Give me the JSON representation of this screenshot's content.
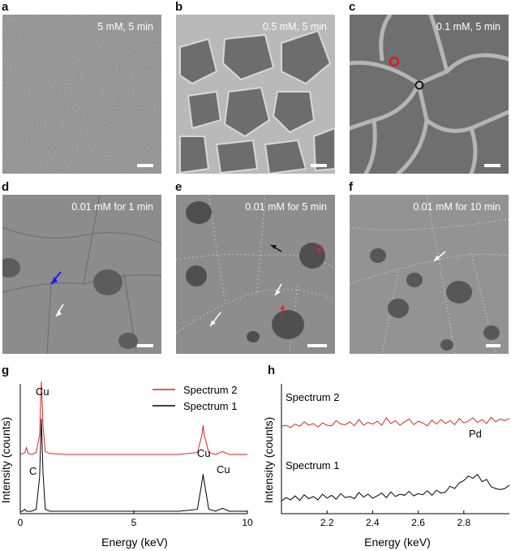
{
  "panel_letters": {
    "a": "a",
    "b": "b",
    "c": "c",
    "d": "d",
    "e": "e",
    "f": "f",
    "g": "g",
    "h": "h"
  },
  "sem_panels": [
    {
      "letter": "a",
      "caption": "5 mM, 5 min",
      "style": "dense-film"
    },
    {
      "letter": "b",
      "caption": "0.5 mM, 5 min",
      "style": "islands"
    },
    {
      "letter": "c",
      "caption": "0.1 mM, 5 min",
      "style": "network"
    },
    {
      "letter": "d",
      "caption": "0.01 mM for 1 min",
      "style": "sparse"
    },
    {
      "letter": "e",
      "caption": "0.01 mM for 5 min",
      "style": "sparse-dots"
    },
    {
      "letter": "f",
      "caption": "0.01 mM for 10 min",
      "style": "sparse-dots"
    }
  ],
  "colors": {
    "spectrum1": "#000000",
    "spectrum2": "#d62728",
    "blue_arrow": "#1a1aff",
    "red_arrow": "#e02020",
    "marker_red": "#ff0000",
    "marker_black": "#111111"
  },
  "chart_data": [
    {
      "type": "line",
      "panel": "g",
      "xlabel": "Energy (keV)",
      "ylabel": "Intensity (counts)",
      "xlim": [
        0,
        10
      ],
      "xticks": [
        0,
        5,
        10
      ],
      "legend_position": "top-right",
      "series": [
        {
          "name": "Spectrum 2",
          "color": "#d62728",
          "x": [
            0,
            0.1,
            0.2,
            0.27,
            0.35,
            0.5,
            0.7,
            0.85,
            0.93,
            1.0,
            1.1,
            1.3,
            2,
            3,
            4,
            5,
            6,
            7,
            7.8,
            8.0,
            8.05,
            8.1,
            8.3,
            8.6,
            8.9,
            9.2,
            10
          ],
          "y": [
            0.25,
            0.26,
            0.27,
            0.32,
            0.26,
            0.25,
            0.27,
            0.45,
            1.0,
            0.55,
            0.28,
            0.26,
            0.25,
            0.25,
            0.25,
            0.25,
            0.25,
            0.25,
            0.27,
            0.45,
            0.55,
            0.45,
            0.27,
            0.25,
            0.28,
            0.25,
            0.25
          ]
        },
        {
          "name": "Spectrum 1",
          "color": "#000000",
          "x": [
            0,
            0.1,
            0.2,
            0.27,
            0.35,
            0.5,
            0.7,
            0.85,
            0.93,
            1.0,
            1.1,
            1.3,
            2,
            3,
            4,
            5,
            6,
            7,
            7.8,
            8.0,
            8.05,
            8.1,
            8.3,
            8.6,
            8.9,
            9.2,
            10
          ],
          "y": [
            0.0,
            0.0,
            0.02,
            0.0,
            0.0,
            0.0,
            0.02,
            0.35,
            0.95,
            0.4,
            0.02,
            0.0,
            0.0,
            0.0,
            0.0,
            0.0,
            0.0,
            0.0,
            0.02,
            0.3,
            0.38,
            0.3,
            0.02,
            0.0,
            0.03,
            0.0,
            0.0
          ]
        }
      ],
      "annotations": [
        "C",
        "Cu",
        "Cu",
        "Cu"
      ]
    },
    {
      "type": "line",
      "panel": "h",
      "xlabel": "Energy (keV)",
      "ylabel": "Intensity (counts)",
      "xlim": [
        2.0,
        3.0
      ],
      "xticks": [
        2.2,
        2.4,
        2.6,
        2.8
      ],
      "series": [
        {
          "name": "Spectrum 2",
          "color": "#d62728",
          "x": [
            2.0,
            2.02,
            2.04,
            2.06,
            2.08,
            2.1,
            2.12,
            2.14,
            2.16,
            2.18,
            2.2,
            2.22,
            2.24,
            2.26,
            2.28,
            2.3,
            2.32,
            2.34,
            2.36,
            2.38,
            2.4,
            2.42,
            2.44,
            2.46,
            2.48,
            2.5,
            2.52,
            2.54,
            2.56,
            2.58,
            2.6,
            2.62,
            2.64,
            2.66,
            2.68,
            2.7,
            2.72,
            2.74,
            2.76,
            2.78,
            2.8,
            2.82,
            2.84,
            2.86,
            2.88,
            2.9,
            2.92,
            2.94,
            2.96,
            2.98,
            3.0
          ],
          "y": [
            0.78,
            0.8,
            0.76,
            0.82,
            0.78,
            0.86,
            0.8,
            0.83,
            0.77,
            0.84,
            0.8,
            0.79,
            0.88,
            0.82,
            0.81,
            0.86,
            0.79,
            0.9,
            0.8,
            0.85,
            0.82,
            0.87,
            0.8,
            0.93,
            0.83,
            0.88,
            0.8,
            0.86,
            0.91,
            0.81,
            0.87,
            0.84,
            0.79,
            0.89,
            0.82,
            0.9,
            0.83,
            0.88,
            0.81,
            0.92,
            0.84,
            0.87,
            0.93,
            0.85,
            0.9,
            0.83,
            0.94,
            0.86,
            0.91,
            0.88,
            0.92
          ]
        },
        {
          "name": "Spectrum 1",
          "color": "#000000",
          "x": [
            2.0,
            2.02,
            2.04,
            2.06,
            2.08,
            2.1,
            2.12,
            2.14,
            2.16,
            2.18,
            2.2,
            2.22,
            2.24,
            2.26,
            2.28,
            2.3,
            2.32,
            2.34,
            2.36,
            2.38,
            2.4,
            2.42,
            2.44,
            2.46,
            2.48,
            2.5,
            2.52,
            2.54,
            2.56,
            2.58,
            2.6,
            2.62,
            2.64,
            2.66,
            2.68,
            2.7,
            2.72,
            2.74,
            2.76,
            2.78,
            2.8,
            2.82,
            2.84,
            2.86,
            2.88,
            2.9,
            2.92,
            2.94,
            2.96,
            2.98,
            3.0
          ],
          "y": [
            0.08,
            0.14,
            0.1,
            0.17,
            0.09,
            0.19,
            0.12,
            0.16,
            0.1,
            0.2,
            0.13,
            0.18,
            0.11,
            0.21,
            0.14,
            0.16,
            0.12,
            0.23,
            0.15,
            0.2,
            0.13,
            0.17,
            0.22,
            0.14,
            0.24,
            0.16,
            0.2,
            0.18,
            0.25,
            0.17,
            0.21,
            0.19,
            0.26,
            0.18,
            0.27,
            0.22,
            0.24,
            0.34,
            0.3,
            0.4,
            0.44,
            0.52,
            0.48,
            0.55,
            0.42,
            0.46,
            0.33,
            0.3,
            0.28,
            0.3,
            0.36
          ]
        }
      ],
      "annotations": [
        "Spectrum 2",
        "Spectrum 1",
        "Pd"
      ]
    }
  ]
}
